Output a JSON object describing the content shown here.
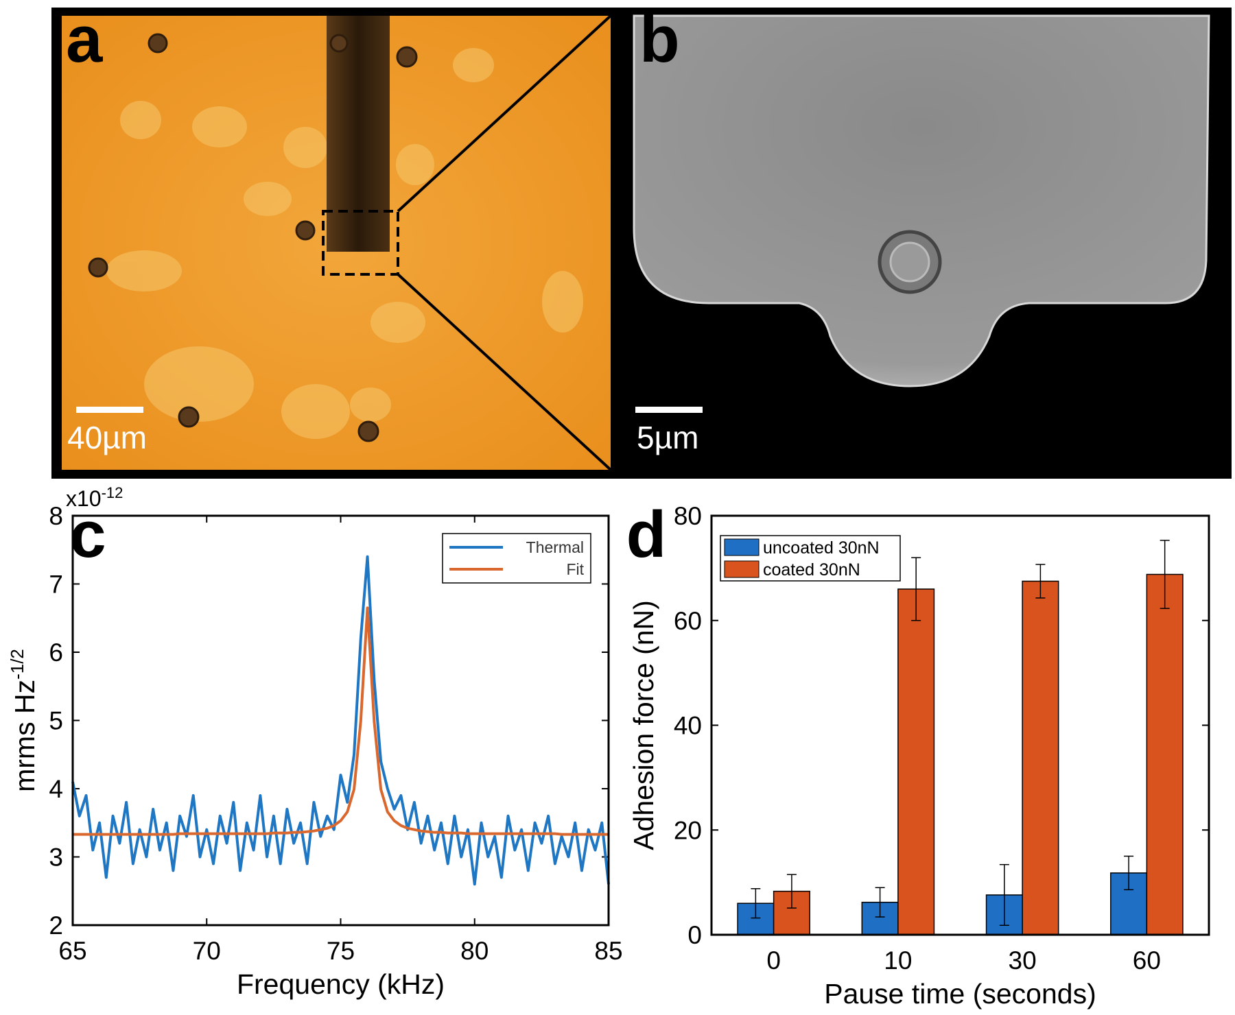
{
  "panels": [
    {
      "label": "a",
      "scale_bar": "40µm"
    },
    {
      "label": "b",
      "scale_bar": "5µm"
    }
  ],
  "chart_data": [
    {
      "type": "line",
      "label": "c",
      "x_label": "Frequency (kHz)",
      "y_label": "mrms Hz",
      "y_label_superscript": "-1/2",
      "y_multiplier": "x10",
      "y_multiplier_exponent": "-12",
      "xlim": [
        65,
        85
      ],
      "xticks": [
        65,
        70,
        75,
        80,
        85
      ],
      "ylim": [
        2,
        8
      ],
      "yticks": [
        2,
        3,
        4,
        5,
        6,
        7,
        8
      ],
      "legend": "top-right",
      "x": [
        65,
        65.25,
        65.5,
        65.75,
        66,
        66.25,
        66.5,
        66.75,
        67,
        67.25,
        67.5,
        67.75,
        68,
        68.25,
        68.5,
        68.75,
        69,
        69.25,
        69.5,
        69.75,
        70,
        70.25,
        70.5,
        70.75,
        71,
        71.25,
        71.5,
        71.75,
        72,
        72.25,
        72.5,
        72.75,
        73,
        73.25,
        73.5,
        73.75,
        74,
        74.25,
        74.5,
        74.75,
        75,
        75.25,
        75.5,
        75.75,
        76,
        76.25,
        76.5,
        76.75,
        77,
        77.25,
        77.5,
        77.75,
        78,
        78.25,
        78.5,
        78.75,
        79,
        79.25,
        79.5,
        79.75,
        80,
        80.25,
        80.5,
        80.75,
        81,
        81.25,
        81.5,
        81.75,
        82,
        82.25,
        82.5,
        82.75,
        83,
        83.25,
        83.5,
        83.75,
        84,
        84.25,
        84.5,
        84.75,
        85
      ],
      "series": [
        {
          "name": "Thermal",
          "color": "#1f77c4",
          "values": [
            4.1,
            3.6,
            3.9,
            3.1,
            3.5,
            2.7,
            3.6,
            3.2,
            3.8,
            2.9,
            3.4,
            3.0,
            3.7,
            3.1,
            3.5,
            2.8,
            3.6,
            3.3,
            3.9,
            3.0,
            3.4,
            2.9,
            3.6,
            3.2,
            3.8,
            2.8,
            3.5,
            3.1,
            3.9,
            3.0,
            3.6,
            2.9,
            3.7,
            3.2,
            3.5,
            2.9,
            3.8,
            3.3,
            3.6,
            3.4,
            4.2,
            3.8,
            4.5,
            6.2,
            7.4,
            5.6,
            4.4,
            4.0,
            3.7,
            3.9,
            3.4,
            3.8,
            3.2,
            3.6,
            3.1,
            3.5,
            2.9,
            3.6,
            3.0,
            3.4,
            2.6,
            3.5,
            3.0,
            3.3,
            2.7,
            3.6,
            3.1,
            3.4,
            2.8,
            3.5,
            3.2,
            3.6,
            2.9,
            3.3,
            3.0,
            3.5,
            2.8,
            3.4,
            3.1,
            3.5,
            2.6
          ]
        },
        {
          "name": "Fit",
          "color": "#d9672e",
          "values": [
            3.33,
            3.33,
            3.33,
            3.33,
            3.33,
            3.33,
            3.33,
            3.33,
            3.33,
            3.33,
            3.33,
            3.33,
            3.33,
            3.33,
            3.33,
            3.33,
            3.34,
            3.34,
            3.34,
            3.34,
            3.34,
            3.34,
            3.34,
            3.34,
            3.34,
            3.34,
            3.34,
            3.34,
            3.34,
            3.34,
            3.35,
            3.35,
            3.35,
            3.36,
            3.36,
            3.37,
            3.38,
            3.4,
            3.42,
            3.46,
            3.53,
            3.66,
            3.99,
            4.99,
            6.65,
            4.99,
            3.99,
            3.66,
            3.53,
            3.46,
            3.42,
            3.4,
            3.38,
            3.37,
            3.36,
            3.36,
            3.35,
            3.35,
            3.35,
            3.34,
            3.34,
            3.34,
            3.34,
            3.34,
            3.34,
            3.34,
            3.34,
            3.34,
            3.34,
            3.34,
            3.34,
            3.34,
            3.34,
            3.33,
            3.33,
            3.33,
            3.33,
            3.33,
            3.33,
            3.33,
            3.33
          ]
        }
      ]
    },
    {
      "type": "bar",
      "label": "d",
      "x_label": "Pause time (seconds)",
      "y_label": "Adhesion force (nN)",
      "categories": [
        "0",
        "10",
        "30",
        "60"
      ],
      "ylim": [
        0,
        80
      ],
      "yticks": [
        0,
        20,
        40,
        60,
        80
      ],
      "legend": "top-left",
      "series": [
        {
          "name": "uncoated 30nN",
          "color": "#1f6fc4",
          "values": [
            6,
            6.2,
            7.6,
            11.8
          ],
          "errors": [
            2.8,
            2.8,
            5.8,
            3.2
          ]
        },
        {
          "name": "coated 30nN",
          "color": "#d9531e",
          "values": [
            8.3,
            66,
            67.5,
            68.8
          ],
          "errors": [
            3.2,
            6,
            3.2,
            6.5
          ]
        }
      ]
    }
  ]
}
